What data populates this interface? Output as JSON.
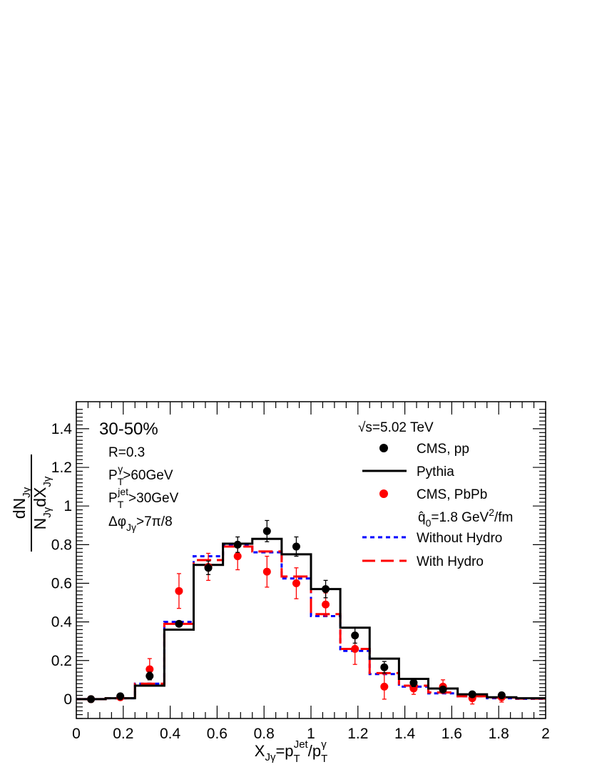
{
  "chart_data": {
    "type": "line",
    "xlabel": {
      "main": "X",
      "sub_main": "Jγ",
      "eq": "=p",
      "sub1": "T",
      "sup1": "Jet",
      "slash": "/p",
      "sub2": "T",
      "sup2": "γ"
    },
    "ylabel": {
      "num_main": "dN",
      "num_sub": "Jγ",
      "den_main": "N",
      "den_sub": "Jγ",
      "den_mid": "dX",
      "den_sub2": "Jγ"
    },
    "xlim": [
      0,
      2
    ],
    "ylim": [
      -0.1,
      1.54
    ],
    "x_ticks": [
      0,
      0.2,
      0.4,
      0.6,
      0.8,
      1,
      1.2,
      1.4,
      1.6,
      1.8,
      2
    ],
    "x_tick_labels": [
      "0",
      "0.2",
      "0.4",
      "0.6",
      "0.8",
      "1",
      "1.2",
      "1.4",
      "1.6",
      "1.8",
      "2"
    ],
    "y_ticks": [
      0,
      0.2,
      0.4,
      0.6,
      0.8,
      1,
      1.2,
      1.4
    ],
    "y_tick_labels": [
      "0",
      "0.2",
      "0.4",
      "0.6",
      "0.8",
      "1",
      "1.2",
      "1.4"
    ],
    "grid": false,
    "annotations": {
      "centrality": "30-50%",
      "radius": "R=0.3",
      "photon_cut": {
        "main": "P",
        "sub": "T",
        "sup": "γ",
        "rest": ">60GeV"
      },
      "jet_cut": {
        "main": "P",
        "sub": "T",
        "sup": "jet",
        "rest": ">30GeV"
      },
      "dphi_cut": {
        "main": "Δφ",
        "sub": "Jγ",
        "rest": ">7π/8"
      },
      "energy": "√s=5.02 TeV",
      "qhat": {
        "main": "q̂",
        "sub": "0",
        "rest1": "=1.8 GeV",
        "sup": "2",
        "rest2": "/fm"
      }
    },
    "bin_edges": [
      0,
      0.125,
      0.25,
      0.375,
      0.5,
      0.625,
      0.75,
      0.875,
      1.0,
      1.125,
      1.25,
      1.375,
      1.5,
      1.625,
      1.75,
      1.875,
      2.0
    ],
    "series": [
      {
        "name": "CMS, pp",
        "style": "markers",
        "color": "#000000",
        "x": [
          0.0625,
          0.1875,
          0.3125,
          0.4375,
          0.5625,
          0.6875,
          0.8125,
          0.9375,
          1.0625,
          1.1875,
          1.3125,
          1.4375,
          1.5625,
          1.6875,
          1.8125
        ],
        "y": [
          0.0,
          0.015,
          0.12,
          0.39,
          0.68,
          0.8,
          0.87,
          0.79,
          0.57,
          0.33,
          0.165,
          0.085,
          0.05,
          0.025,
          0.02
        ],
        "err": [
          0.0,
          0.01,
          0.02,
          0.01,
          0.035,
          0.04,
          0.055,
          0.05,
          0.045,
          0.04,
          0.03,
          0.02,
          0.015,
          0.01,
          0.01
        ]
      },
      {
        "name": "Pythia",
        "style": "step",
        "color": "#000000",
        "values": [
          0.0,
          0.005,
          0.07,
          0.36,
          0.695,
          0.805,
          0.83,
          0.75,
          0.57,
          0.37,
          0.21,
          0.105,
          0.055,
          0.025,
          0.01,
          0.005
        ]
      },
      {
        "name": "CMS, PbPb",
        "style": "markers",
        "color": "#ff0000",
        "x": [
          0.0625,
          0.1875,
          0.3125,
          0.4375,
          0.5625,
          0.6875,
          0.8125,
          0.9375,
          1.0625,
          1.1875,
          1.3125,
          1.4375,
          1.5625,
          1.6875,
          1.8125
        ],
        "y": [
          0.0,
          0.01,
          0.155,
          0.56,
          0.685,
          0.74,
          0.66,
          0.6,
          0.49,
          0.26,
          0.065,
          0.055,
          0.065,
          0.005,
          0.01
        ],
        "err": [
          0.0,
          0.005,
          0.055,
          0.09,
          0.07,
          0.07,
          0.08,
          0.08,
          0.06,
          0.08,
          0.065,
          0.03,
          0.035,
          0.03,
          0.025
        ]
      },
      {
        "name": "Without Hydro",
        "style": "step-dotted",
        "color": "#0000ff",
        "values": [
          0.0,
          0.005,
          0.08,
          0.4,
          0.74,
          0.795,
          0.76,
          0.625,
          0.43,
          0.25,
          0.13,
          0.065,
          0.03,
          0.015,
          0.005,
          0.002
        ]
      },
      {
        "name": "With Hydro",
        "style": "step-dashed",
        "color": "#ff0000",
        "values": [
          0.0,
          0.005,
          0.08,
          0.39,
          0.72,
          0.79,
          0.765,
          0.635,
          0.44,
          0.26,
          0.135,
          0.07,
          0.035,
          0.015,
          0.008,
          0.003
        ]
      }
    ],
    "legend_placement": "top-right"
  }
}
